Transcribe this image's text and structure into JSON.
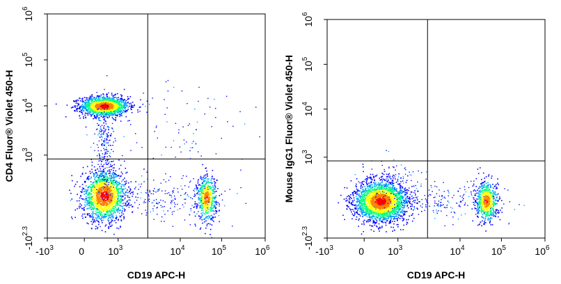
{
  "chart_data": [
    {
      "type": "scatter",
      "subtype": "flow-cytometry-density-dot-plot",
      "xlabel": "CD19 APC-H",
      "ylabel": "CD4  Fluor® Violet 450-H",
      "x_scale": "biexponential",
      "y_scale": "biexponential",
      "x_ticks": [
        {
          "base": "-10",
          "exp": "3"
        },
        {
          "base": "0",
          "exp": ""
        },
        {
          "base": "10",
          "exp": "3"
        },
        {
          "base": "10",
          "exp": "4"
        },
        {
          "base": "10",
          "exp": "5"
        },
        {
          "base": "10",
          "exp": "6"
        }
      ],
      "y_ticks": [
        {
          "base": "-10",
          "exp": "2.3"
        },
        {
          "base": "10",
          "exp": "3"
        },
        {
          "base": "10",
          "exp": "4"
        },
        {
          "base": "10",
          "exp": "5"
        },
        {
          "base": "10",
          "exp": "6"
        }
      ],
      "quadrant_gate": {
        "x": 3000,
        "y": 600
      },
      "populations": [
        {
          "name_hidden": true,
          "x_center": 500,
          "y_center": 9000,
          "n": 1500
        },
        {
          "name_hidden": true,
          "x_center": 500,
          "y_center": -20,
          "n": 1700
        },
        {
          "name_hidden": true,
          "x_center": 40000,
          "y_center": -40,
          "n": 600
        }
      ],
      "density_colors": [
        "#0000ff",
        "#00a0ff",
        "#00ff80",
        "#ffff00",
        "#ff8000",
        "#ff0000"
      ]
    },
    {
      "type": "scatter",
      "subtype": "flow-cytometry-density-dot-plot",
      "xlabel": "CD19 APC-H",
      "ylabel": "Mouse IgG1 Fluor® Violet 450-H",
      "x_scale": "biexponential",
      "y_scale": "biexponential",
      "x_ticks": [
        {
          "base": "-10",
          "exp": "3"
        },
        {
          "base": "0",
          "exp": ""
        },
        {
          "base": "10",
          "exp": "3"
        },
        {
          "base": "10",
          "exp": "4"
        },
        {
          "base": "10",
          "exp": "5"
        },
        {
          "base": "10",
          "exp": "6"
        }
      ],
      "y_ticks": [
        {
          "base": "-10",
          "exp": "2.3"
        },
        {
          "base": "10",
          "exp": "3"
        },
        {
          "base": "10",
          "exp": "4"
        },
        {
          "base": "10",
          "exp": "5"
        },
        {
          "base": "10",
          "exp": "6"
        }
      ],
      "quadrant_gate": {
        "x": 3000,
        "y": 600
      },
      "populations": [
        {
          "name_hidden": true,
          "x_center": 500,
          "y_center": -30,
          "n": 2600
        },
        {
          "name_hidden": true,
          "x_center": 40000,
          "y_center": -40,
          "n": 700
        }
      ],
      "density_colors": [
        "#0000ff",
        "#00a0ff",
        "#00ff80",
        "#ffff00",
        "#ff8000",
        "#ff0000"
      ]
    }
  ]
}
